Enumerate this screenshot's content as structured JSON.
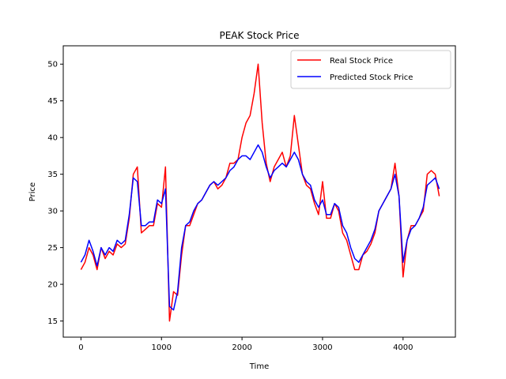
{
  "chart_data": {
    "type": "line",
    "title": "PEAK Stock Price",
    "xlabel": "Time",
    "ylabel": "Price",
    "xlim": [
      -220,
      4650
    ],
    "ylim": [
      12.8,
      52.5
    ],
    "xticks": [
      0,
      1000,
      2000,
      3000,
      4000
    ],
    "yticks": [
      15,
      20,
      25,
      30,
      35,
      40,
      45,
      50
    ],
    "grid": false,
    "legend_position": "top-right",
    "series": [
      {
        "name": "Real Stock Price",
        "color": "#ff0000",
        "x": [
          0,
          50,
          100,
          150,
          200,
          250,
          300,
          350,
          400,
          450,
          500,
          550,
          600,
          650,
          700,
          750,
          800,
          850,
          900,
          950,
          1000,
          1050,
          1100,
          1150,
          1200,
          1250,
          1300,
          1350,
          1400,
          1450,
          1500,
          1550,
          1600,
          1650,
          1700,
          1750,
          1800,
          1850,
          1900,
          1950,
          2000,
          2050,
          2100,
          2150,
          2200,
          2250,
          2300,
          2350,
          2400,
          2450,
          2500,
          2550,
          2600,
          2650,
          2700,
          2750,
          2800,
          2850,
          2900,
          2950,
          3000,
          3050,
          3100,
          3150,
          3200,
          3250,
          3300,
          3350,
          3400,
          3450,
          3500,
          3550,
          3600,
          3650,
          3700,
          3750,
          3800,
          3850,
          3900,
          3950,
          4000,
          4050,
          4100,
          4150,
          4200,
          4250,
          4300,
          4350,
          4400,
          4450
        ],
        "values": [
          22.0,
          23.0,
          25.0,
          24.0,
          22.0,
          25.0,
          23.5,
          24.5,
          24.0,
          25.5,
          25.0,
          25.5,
          29.0,
          35.0,
          36.0,
          27.0,
          27.5,
          28.0,
          28.0,
          31.0,
          30.5,
          36.0,
          15.0,
          19.0,
          18.5,
          24.0,
          28.0,
          28.0,
          29.5,
          31.0,
          31.5,
          32.5,
          33.5,
          34.0,
          33.0,
          33.5,
          34.5,
          36.5,
          36.5,
          37.0,
          40.0,
          42.0,
          43.0,
          46.0,
          50.0,
          42.0,
          36.5,
          34.0,
          36.0,
          37.0,
          38.0,
          36.0,
          37.5,
          43.0,
          39.0,
          35.0,
          33.5,
          33.0,
          31.0,
          29.5,
          34.0,
          29.0,
          29.0,
          31.0,
          30.0,
          27.0,
          26.0,
          24.0,
          22.0,
          22.0,
          24.0,
          24.5,
          25.5,
          27.0,
          30.0,
          31.0,
          32.0,
          33.0,
          36.5,
          32.0,
          21.0,
          26.0,
          28.0,
          28.0,
          29.0,
          30.0,
          35.0,
          35.5,
          35.0,
          32.0
        ]
      },
      {
        "name": "Predicted Stock Price",
        "color": "#0000ff",
        "x": [
          0,
          50,
          100,
          150,
          200,
          250,
          300,
          350,
          400,
          450,
          500,
          550,
          600,
          650,
          700,
          750,
          800,
          850,
          900,
          950,
          1000,
          1050,
          1100,
          1150,
          1200,
          1250,
          1300,
          1350,
          1400,
          1450,
          1500,
          1550,
          1600,
          1650,
          1700,
          1750,
          1800,
          1850,
          1900,
          1950,
          2000,
          2050,
          2100,
          2150,
          2200,
          2250,
          2300,
          2350,
          2400,
          2450,
          2500,
          2550,
          2600,
          2650,
          2700,
          2750,
          2800,
          2850,
          2900,
          2950,
          3000,
          3050,
          3100,
          3150,
          3200,
          3250,
          3300,
          3350,
          3400,
          3450,
          3500,
          3550,
          3600,
          3650,
          3700,
          3750,
          3800,
          3850,
          3900,
          3950,
          4000,
          4050,
          4100,
          4150,
          4200,
          4250,
          4300,
          4350,
          4400,
          4450
        ],
        "values": [
          23.0,
          24.0,
          26.0,
          24.5,
          22.5,
          25.0,
          24.0,
          25.0,
          24.5,
          26.0,
          25.5,
          26.0,
          29.5,
          34.5,
          34.0,
          28.0,
          28.0,
          28.5,
          28.5,
          31.5,
          31.0,
          33.0,
          17.0,
          16.5,
          19.0,
          25.0,
          28.0,
          28.5,
          30.0,
          31.0,
          31.5,
          32.5,
          33.5,
          34.0,
          33.5,
          34.0,
          34.5,
          35.5,
          36.0,
          37.0,
          37.5,
          37.5,
          37.0,
          38.0,
          39.0,
          38.0,
          36.0,
          34.5,
          35.5,
          36.0,
          36.5,
          36.0,
          37.0,
          38.0,
          37.0,
          35.0,
          34.0,
          33.5,
          31.5,
          30.5,
          31.5,
          29.5,
          29.5,
          31.0,
          30.5,
          28.0,
          27.0,
          25.0,
          23.5,
          23.0,
          24.0,
          25.0,
          26.0,
          27.5,
          30.0,
          31.0,
          32.0,
          33.0,
          35.0,
          32.0,
          23.0,
          26.0,
          27.5,
          28.0,
          29.0,
          30.5,
          33.5,
          34.0,
          34.5,
          33.0
        ]
      }
    ]
  }
}
